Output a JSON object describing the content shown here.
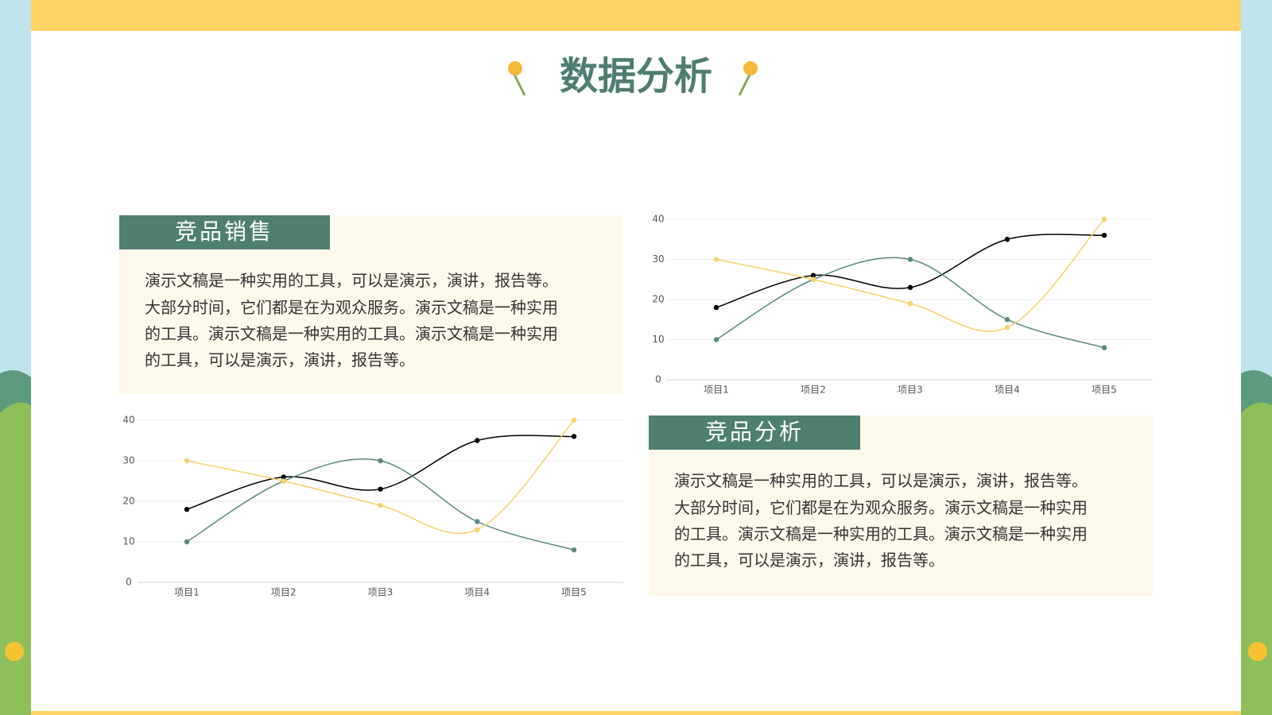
{
  "title": "数据分析",
  "panels": [
    {
      "heading": "竞品销售",
      "lines": [
        "演示文稿是一种实用的工具，可以是演示，演讲，报告等。",
        "大部分时间，它们都是在为观众服务。演示文稿是一种实用",
        "的工具。演示文稿是一种实用的工具。演示文稿是一种实用",
        "的工具，可以是演示，演讲，报告等。"
      ]
    },
    {
      "heading": "竞品分析",
      "lines": [
        "演示文稿是一种实用的工具，可以是演示，演讲，报告等。",
        "大部分时间，它们都是在为观众服务。演示文稿是一种实用",
        "的工具。演示文稿是一种实用的工具。演示文稿是一种实用",
        "的工具，可以是演示，演讲，报告等。"
      ]
    }
  ],
  "chart_data": [
    {
      "type": "line",
      "categories": [
        "项目1",
        "项目2",
        "项目3",
        "项目4",
        "项目5"
      ],
      "series": [
        {
          "color": "#000000",
          "values": [
            18,
            26,
            23,
            35,
            36
          ]
        },
        {
          "color": "#5a8a7c",
          "values": [
            10,
            25,
            30,
            15,
            8
          ]
        },
        {
          "color": "#f5d36b",
          "values": [
            30,
            25,
            19,
            13,
            40
          ]
        }
      ],
      "ylim": [
        0,
        40
      ],
      "yticks": [
        0,
        10,
        20,
        30,
        40
      ],
      "grid": true
    },
    {
      "type": "line",
      "categories": [
        "项目1",
        "项目2",
        "项目3",
        "项目4",
        "项目5"
      ],
      "series": [
        {
          "color": "#000000",
          "values": [
            18,
            26,
            23,
            35,
            36
          ]
        },
        {
          "color": "#5a8a7c",
          "values": [
            10,
            25,
            30,
            15,
            8
          ]
        },
        {
          "color": "#f5d36b",
          "values": [
            30,
            25,
            19,
            13,
            40
          ]
        }
      ],
      "ylim": [
        0,
        40
      ],
      "yticks": [
        0,
        10,
        20,
        30,
        40
      ],
      "grid": true
    }
  ]
}
